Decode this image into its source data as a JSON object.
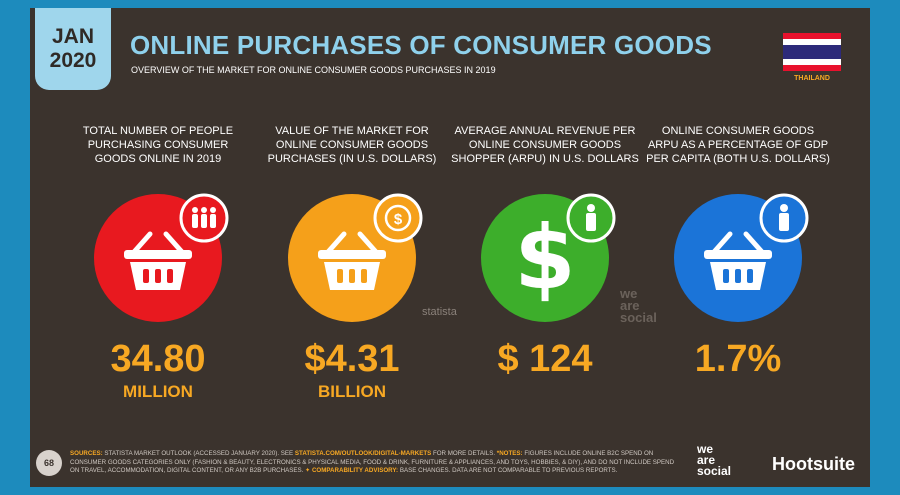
{
  "header": {
    "date_month": "JAN",
    "date_year": "2020",
    "title": "ONLINE PURCHASES OF CONSUMER GOODS",
    "subtitle": "OVERVIEW OF THE MARKET FOR ONLINE CONSUMER GOODS PURCHASES IN 2019",
    "country": "THAILAND"
  },
  "stats": [
    {
      "label_lines": [
        "TOTAL NUMBER OF PEOPLE",
        "PURCHASING CONSUMER",
        "GOODS ONLINE IN 2019"
      ],
      "value": "34.80",
      "unit": "MILLION"
    },
    {
      "label_lines": [
        "VALUE OF THE MARKET FOR",
        "ONLINE CONSUMER GOODS",
        "PURCHASES (IN U.S. DOLLARS)"
      ],
      "value": "$4.31",
      "unit": "BILLION"
    },
    {
      "label_lines": [
        "AVERAGE ANNUAL REVENUE PER",
        "ONLINE CONSUMER GOODS",
        "SHOPPER (ARPU) IN U.S. DOLLARS"
      ],
      "value": "$ 124"
    },
    {
      "label_lines": [
        "ONLINE CONSUMER GOODS",
        "ARPU AS A PERCENTAGE OF GDP",
        "PER CAPITA (BOTH U.S. DOLLARS)"
      ],
      "value": "1.7%"
    }
  ],
  "watermarks": {
    "statista": "statista",
    "we_are_social": [
      "we",
      "are",
      "social"
    ]
  },
  "footer": {
    "page": "68",
    "sources_parts": [
      "SOURCES:",
      " STATISTA MARKET OUTLOOK (ACCESSED JANUARY 2020). SEE ",
      "STATISTA.COM/OUTLOOK/DIGITAL-MARKETS",
      " FOR MORE DETAILS. ",
      "*NOTES:",
      " FIGURES INCLUDE ONLINE B2C SPEND ON CONSUMER GOODS CATEGORIES ONLY (FASHION & BEAUTY, ELECTRONICS & PHYSICAL MEDIA, FOOD & DRINK, FURNITURE & APPLIANCES, AND TOYS, HOBBIES, & DIY), AND DO NOT INCLUDE SPEND ON TRAVEL, ACCOMMODATION, DIGITAL CONTENT, OR ANY B2B PURCHASES. ",
      "✦ COMPARABILITY ADVISORY:",
      " BASE CHANGES. DATA ARE NOT COMPARABLE TO PREVIOUS REPORTS."
    ],
    "logo_was": [
      "we",
      "are",
      "social"
    ],
    "logo_hootsuite": "Hootsuite"
  }
}
